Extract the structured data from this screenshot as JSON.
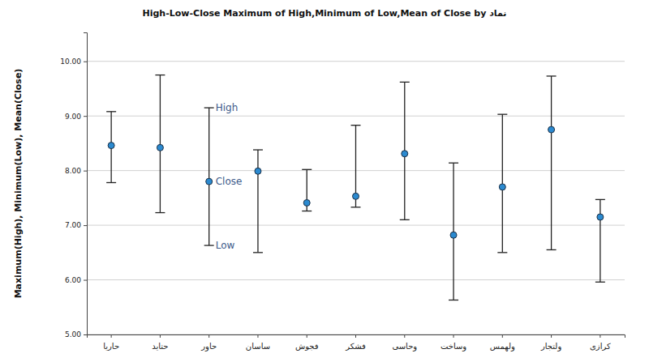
{
  "chart_data": {
    "type": "hlc",
    "title": "High-Low-Close Maximum of High,Minimum of Low,Mean of Close by نماد",
    "y_label": "Maximum(High), Minimum(Low), Mean(Close)",
    "categories": [
      "حاریا",
      "حتاید",
      "حاور",
      "ساسان",
      "فجوش",
      "فشکر",
      "وحاسی",
      "وساخت",
      "ولهمس",
      "ولتجار",
      "کرازی"
    ],
    "high": [
      9.08,
      9.75,
      9.15,
      8.38,
      8.02,
      8.83,
      9.62,
      8.14,
      9.03,
      9.73,
      7.47
    ],
    "low": [
      7.78,
      7.23,
      6.63,
      6.5,
      7.26,
      7.33,
      7.1,
      5.63,
      6.5,
      6.55,
      5.96
    ],
    "close": [
      8.46,
      8.42,
      7.8,
      7.99,
      7.41,
      7.53,
      8.31,
      6.82,
      7.7,
      8.75,
      7.15
    ],
    "color": "#2b8ad0",
    "ylim": [
      5,
      10.53
    ],
    "yticks": [
      {
        "value": 5,
        "label": "5.00"
      },
      {
        "value": 6,
        "label": "6.00"
      },
      {
        "value": 7,
        "label": "7.00"
      },
      {
        "value": 8,
        "label": "8.00"
      },
      {
        "value": 9,
        "label": "9.00"
      },
      {
        "value": 10,
        "label": "10.00"
      }
    ],
    "grid": true,
    "annotations": [
      {
        "text": "High",
        "series": "high",
        "category": "حاور"
      },
      {
        "text": "Close",
        "series": "close",
        "category": "حاور"
      },
      {
        "text": "Low",
        "series": "low",
        "category": "حاور"
      }
    ]
  }
}
